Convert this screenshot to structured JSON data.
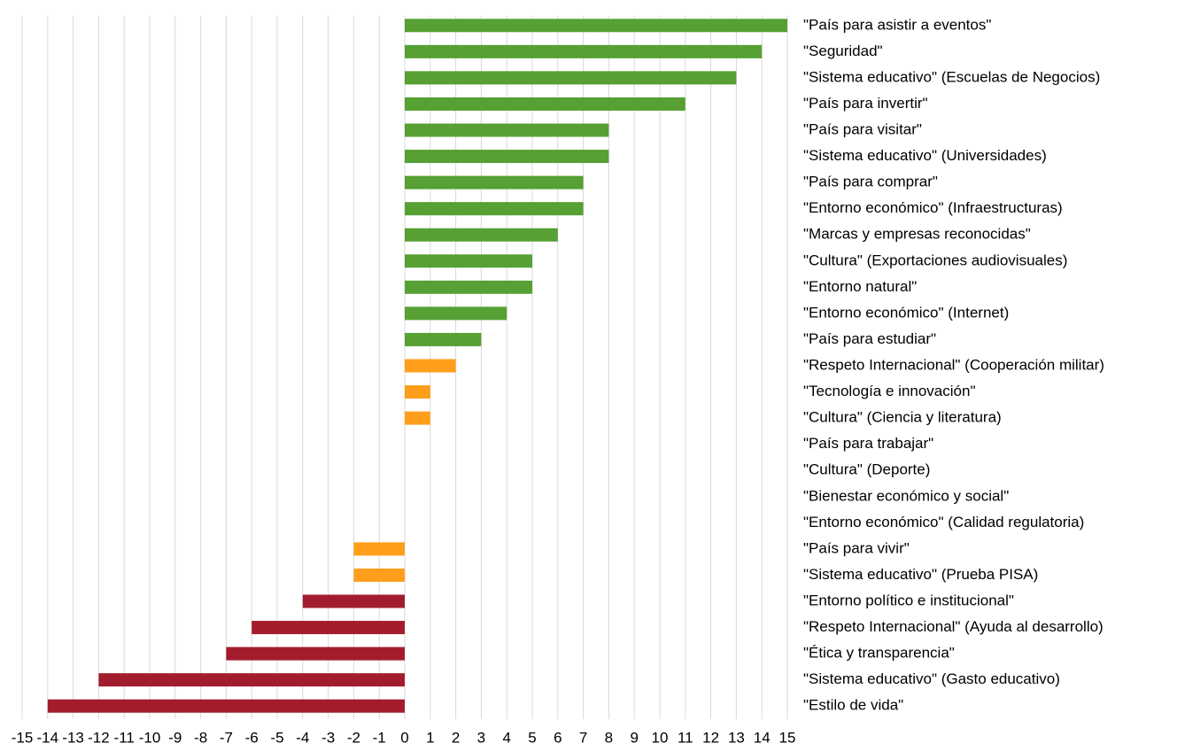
{
  "chart_data": {
    "type": "barh",
    "categories": [
      "\"País para asistir a eventos\"",
      "\"Seguridad\"",
      "\"Sistema educativo\" (Escuelas de Negocios)",
      "\"País para invertir\"",
      "\"País para visitar\"",
      "\"Sistema educativo\" (Universidades)",
      "\"País para comprar\"",
      "\"Entorno económico\" (Infraestructuras)",
      "\"Marcas y empresas reconocidas\"",
      "\"Cultura\" (Exportaciones audiovisuales)",
      "\"Entorno natural\"",
      "\"Entorno económico\" (Internet)",
      "\"País para estudiar\"",
      "\"Respeto Internacional\" (Cooperación militar)",
      "\"Tecnología e innovación\"",
      "\"Cultura\" (Ciencia y literatura)",
      "\"País para trabajar\"",
      "\"Cultura\" (Deporte)",
      "\"Bienestar económico y social\"",
      "\"Entorno económico\" (Calidad regulatoria)",
      "\"País para vivir\"",
      "\"Sistema educativo\" (Prueba PISA)",
      "\"Entorno político e institucional\"",
      "\"Respeto Internacional\" (Ayuda al desarrollo)",
      "\"Ética y transparencia\"",
      "\"Sistema educativo\" (Gasto educativo)",
      "\"Estilo de vida\""
    ],
    "values": [
      15,
      14,
      13,
      11,
      8,
      8,
      7,
      7,
      6,
      5,
      5,
      4,
      3,
      2,
      1,
      1,
      0,
      0,
      0,
      0,
      -2,
      -2,
      -4,
      -6,
      -7,
      -12,
      -14
    ],
    "colors": [
      "#56a034",
      "#56a034",
      "#56a034",
      "#56a034",
      "#56a034",
      "#56a034",
      "#56a034",
      "#56a034",
      "#56a034",
      "#56a034",
      "#56a034",
      "#56a034",
      "#56a034",
      "#ff9e1b",
      "#ff9e1b",
      "#ff9e1b",
      "#ff9e1b",
      "#ff9e1b",
      "#ff9e1b",
      "#ff9e1b",
      "#ff9e1b",
      "#ff9e1b",
      "#a31c2e",
      "#a31c2e",
      "#a31c2e",
      "#a31c2e",
      "#a31c2e"
    ],
    "xlim": [
      -15,
      15
    ],
    "xticks": [
      -15,
      -14,
      -13,
      -12,
      -11,
      -10,
      -9,
      -8,
      -7,
      -6,
      -5,
      -4,
      -3,
      -2,
      -1,
      0,
      1,
      2,
      3,
      4,
      5,
      6,
      7,
      8,
      9,
      10,
      11,
      12,
      13,
      14,
      15
    ],
    "grid": true
  }
}
